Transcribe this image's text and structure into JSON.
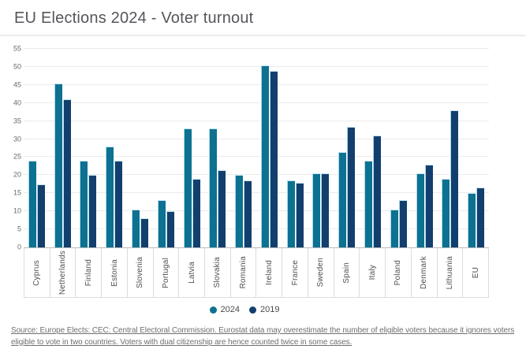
{
  "page": {
    "title": "EU Elections 2024 - Voter turnout",
    "source_text": "Source: Europe Elects: CEC: Central Electoral Commission. Eurostat data may overestimate the number of eligible voters because it ignores voters eligible to vote in two countries. Voters with dual citizenship are hence counted twice in some cases."
  },
  "colors": {
    "series_2024": "#0d7191",
    "series_2019": "#123f6d",
    "bar_stroke": "#a7d9ea",
    "gridline": "#ebebeb",
    "axis_line": "#b9b9b9"
  },
  "chart_data": {
    "type": "bar",
    "title": "EU Elections 2024 - Voter turnout",
    "categories": [
      "Cyprus",
      "Netherlands",
      "Finland",
      "Estonia",
      "Slovenia",
      "Portugal",
      "Latvia",
      "Slovakia",
      "Romania",
      "Ireland",
      "France",
      "Sweden",
      "Spain",
      "Italy",
      "Poland",
      "Denmark",
      "Lithuania",
      "EU"
    ],
    "series": [
      {
        "name": "2024",
        "color": "#0d7191",
        "values": [
          24,
          45.5,
          24,
          28,
          10.5,
          13,
          33,
          33,
          20,
          50.5,
          18.5,
          20.5,
          26.5,
          24,
          10.5,
          20.5,
          19,
          15
        ]
      },
      {
        "name": "2019",
        "color": "#123f6d",
        "values": [
          17.5,
          41,
          20,
          24,
          8,
          10,
          19,
          21.5,
          18.5,
          49,
          18,
          20.5,
          33.5,
          31,
          13,
          23,
          38,
          16.5
        ]
      }
    ],
    "xlabel": "",
    "ylabel": "",
    "ylim": [
      0,
      55
    ],
    "ytick_step": 5,
    "grid": true,
    "legend_position": "bottom"
  }
}
